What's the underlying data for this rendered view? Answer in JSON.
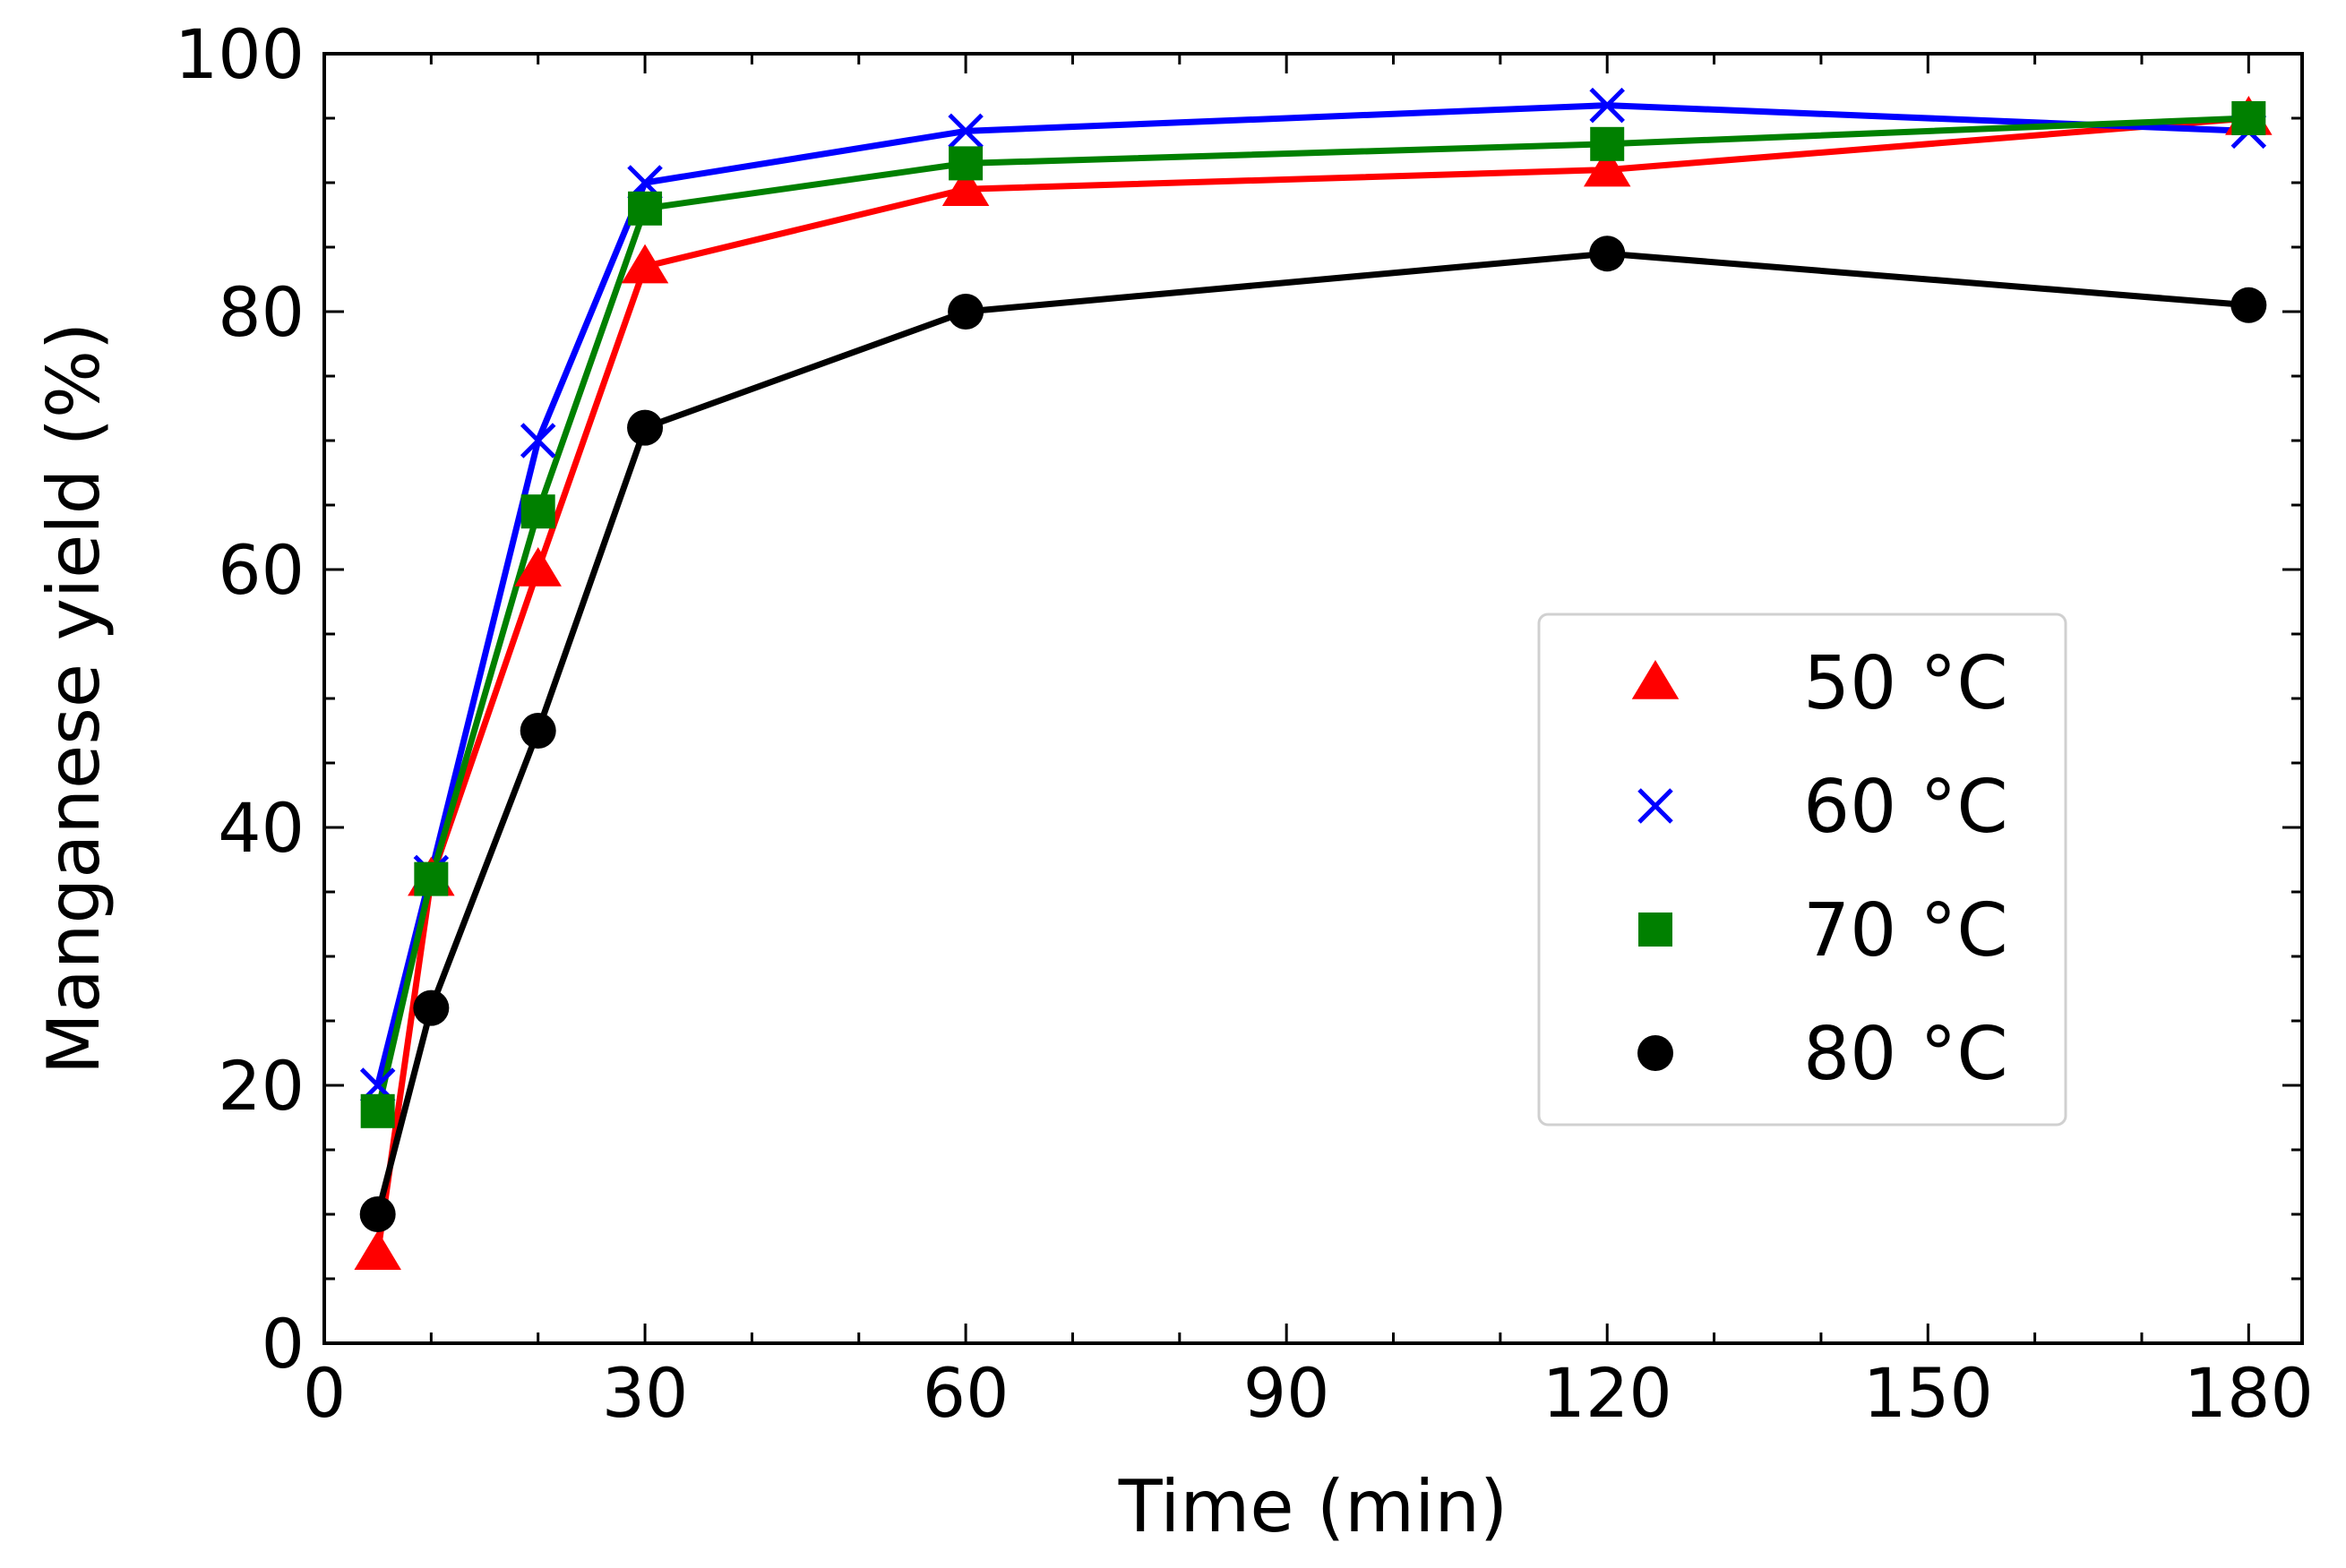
{
  "chart_data": {
    "type": "line",
    "title": "",
    "xlabel": "Time  (min)",
    "ylabel": "Manganese yield (%)",
    "xlim": [
      0,
      185
    ],
    "ylim": [
      0,
      100
    ],
    "xticks": [
      0,
      30,
      60,
      90,
      120,
      150,
      180
    ],
    "yticks": [
      0,
      20,
      40,
      60,
      80,
      100
    ],
    "xtick_labels": [
      "0",
      "30",
      "60",
      "90",
      "120",
      "150",
      "180"
    ],
    "ytick_labels": [
      "0",
      "20",
      "40",
      "60",
      "80",
      "100"
    ],
    "grid": false,
    "legend_position": "center-right",
    "series": [
      {
        "name": "50 °C",
        "color": "#ff0000",
        "marker": "triangle",
        "x": [
          5,
          10,
          20,
          30,
          60,
          120,
          180
        ],
        "y": [
          7,
          36,
          60,
          83.5,
          89.5,
          91,
          95
        ]
      },
      {
        "name": "60 °C",
        "color": "#0000ff",
        "marker": "x",
        "x": [
          5,
          10,
          20,
          30,
          60,
          120,
          180
        ],
        "y": [
          20,
          36.5,
          70,
          90,
          94,
          96,
          94
        ]
      },
      {
        "name": "70 °C",
        "color": "#008000",
        "marker": "square",
        "x": [
          5,
          10,
          20,
          30,
          60,
          120,
          180
        ],
        "y": [
          18,
          36,
          64.5,
          88,
          91.5,
          93,
          95
        ]
      },
      {
        "name": "80 °C",
        "color": "#000000",
        "marker": "circle",
        "x": [
          5,
          10,
          20,
          30,
          60,
          120,
          180
        ],
        "y": [
          10,
          26,
          47.5,
          71,
          80,
          84.5,
          80.5
        ]
      }
    ]
  }
}
